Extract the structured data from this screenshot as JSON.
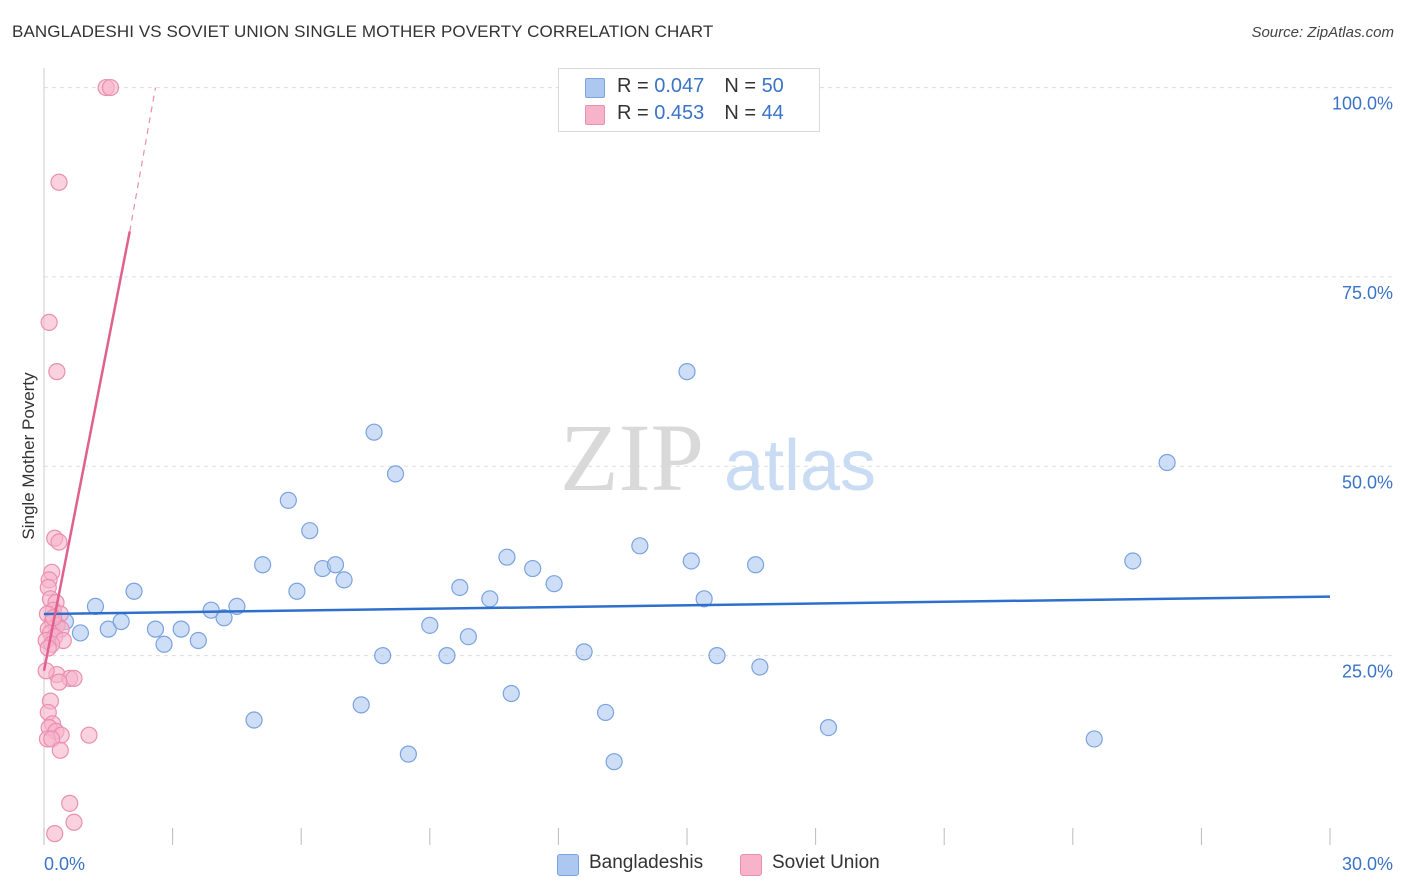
{
  "title": "BANGLADESHI VS SOVIET UNION SINGLE MOTHER POVERTY CORRELATION CHART",
  "source": "Source: ZipAtlas.com",
  "watermark": {
    "zip": "ZIP",
    "atlas": "atlas"
  },
  "legend_top": [
    {
      "r_label": "R = ",
      "r_value": "0.047",
      "n_label": "N = ",
      "n_value": "50"
    },
    {
      "r_label": "R = ",
      "r_value": "0.453",
      "n_label": "N = ",
      "n_value": "44"
    }
  ],
  "legend_bottom": [
    "Bangladeshis",
    "Soviet Union"
  ],
  "colors": {
    "blue_fill": "#adc8f0",
    "blue_stroke": "#7aa3e0",
    "blue_line": "#2f6fcc",
    "pink_fill": "#f6b3c9",
    "pink_stroke": "#ea8fb0",
    "pink_line": "#e0608e",
    "tick_label": "#3a73c8",
    "grid": "#dddddd"
  },
  "chart_data": {
    "type": "scatter",
    "title": "BANGLADESHI VS SOVIET UNION SINGLE MOTHER POVERTY CORRELATION CHART",
    "xlabel": "",
    "ylabel": "Single Mother Poverty",
    "xlim": [
      0,
      30
    ],
    "ylim": [
      0,
      101
    ],
    "x_tick_labels": [
      "0.0%",
      "30.0%"
    ],
    "y_ticks": [
      25,
      50,
      75,
      100
    ],
    "y_tick_labels": [
      "25.0%",
      "50.0%",
      "75.0%",
      "100.0%"
    ],
    "series": [
      {
        "name": "Bangladeshis",
        "r": 0.047,
        "n": 50,
        "trend": {
          "x": [
            0,
            30
          ],
          "y": [
            30.5,
            32.8
          ],
          "style": "solid"
        },
        "points": [
          {
            "x": 0.5,
            "y": 29.5
          },
          {
            "x": 0.85,
            "y": 28.0
          },
          {
            "x": 1.2,
            "y": 31.5
          },
          {
            "x": 1.5,
            "y": 28.5
          },
          {
            "x": 1.8,
            "y": 29.5
          },
          {
            "x": 2.1,
            "y": 33.5
          },
          {
            "x": 2.6,
            "y": 28.5
          },
          {
            "x": 2.8,
            "y": 26.5
          },
          {
            "x": 3.2,
            "y": 28.5
          },
          {
            "x": 3.6,
            "y": 27.0
          },
          {
            "x": 3.9,
            "y": 31.0
          },
          {
            "x": 4.2,
            "y": 30.0
          },
          {
            "x": 4.5,
            "y": 31.5
          },
          {
            "x": 4.9,
            "y": 16.5
          },
          {
            "x": 5.1,
            "y": 37.0
          },
          {
            "x": 5.7,
            "y": 45.5
          },
          {
            "x": 5.9,
            "y": 33.5
          },
          {
            "x": 6.2,
            "y": 41.5
          },
          {
            "x": 6.5,
            "y": 36.5
          },
          {
            "x": 6.8,
            "y": 37.0
          },
          {
            "x": 7.0,
            "y": 35.0
          },
          {
            "x": 7.4,
            "y": 18.5
          },
          {
            "x": 7.7,
            "y": 54.5
          },
          {
            "x": 7.9,
            "y": 25.0
          },
          {
            "x": 8.2,
            "y": 49.0
          },
          {
            "x": 8.5,
            "y": 12.0
          },
          {
            "x": 9.0,
            "y": 29.0
          },
          {
            "x": 9.4,
            "y": 25.0
          },
          {
            "x": 9.7,
            "y": 34.0
          },
          {
            "x": 9.9,
            "y": 27.5
          },
          {
            "x": 10.4,
            "y": 32.5
          },
          {
            "x": 10.8,
            "y": 38.0
          },
          {
            "x": 10.9,
            "y": 20.0
          },
          {
            "x": 11.4,
            "y": 36.5
          },
          {
            "x": 11.9,
            "y": 34.5
          },
          {
            "x": 12.6,
            "y": 25.5
          },
          {
            "x": 13.1,
            "y": 17.5
          },
          {
            "x": 13.3,
            "y": 11.0
          },
          {
            "x": 13.9,
            "y": 39.5
          },
          {
            "x": 15.0,
            "y": 62.5
          },
          {
            "x": 15.1,
            "y": 37.5
          },
          {
            "x": 15.4,
            "y": 32.5
          },
          {
            "x": 15.7,
            "y": 25.0
          },
          {
            "x": 16.6,
            "y": 37.0
          },
          {
            "x": 16.7,
            "y": 23.5
          },
          {
            "x": 18.3,
            "y": 15.5
          },
          {
            "x": 24.5,
            "y": 14.0
          },
          {
            "x": 25.4,
            "y": 37.5
          },
          {
            "x": 26.2,
            "y": 50.5
          },
          {
            "x": 0.3,
            "y": 29.0
          }
        ]
      },
      {
        "name": "Soviet Union",
        "r": 0.453,
        "n": 44,
        "trend": {
          "x": [
            0,
            2.0
          ],
          "y": [
            23.0,
            81.0
          ],
          "style": "solid",
          "extension": {
            "x": [
              2.0,
              2.6
            ],
            "y": [
              81.0,
              100.0
            ],
            "style": "dashed"
          }
        },
        "points": [
          {
            "x": 1.45,
            "y": 100.0
          },
          {
            "x": 1.55,
            "y": 100.0
          },
          {
            "x": 0.35,
            "y": 87.5
          },
          {
            "x": 0.12,
            "y": 69.0
          },
          {
            "x": 0.3,
            "y": 62.5
          },
          {
            "x": 0.25,
            "y": 40.5
          },
          {
            "x": 0.35,
            "y": 40.0
          },
          {
            "x": 0.18,
            "y": 36.0
          },
          {
            "x": 0.12,
            "y": 35.0
          },
          {
            "x": 0.1,
            "y": 34.0
          },
          {
            "x": 0.15,
            "y": 32.5
          },
          {
            "x": 0.28,
            "y": 32.0
          },
          {
            "x": 0.22,
            "y": 31.0
          },
          {
            "x": 0.38,
            "y": 30.5
          },
          {
            "x": 0.08,
            "y": 30.5
          },
          {
            "x": 0.2,
            "y": 29.5
          },
          {
            "x": 0.3,
            "y": 29.0
          },
          {
            "x": 0.1,
            "y": 28.5
          },
          {
            "x": 0.4,
            "y": 28.5
          },
          {
            "x": 0.15,
            "y": 28.0
          },
          {
            "x": 0.25,
            "y": 27.5
          },
          {
            "x": 0.45,
            "y": 27.0
          },
          {
            "x": 0.05,
            "y": 27.0
          },
          {
            "x": 0.18,
            "y": 26.5
          },
          {
            "x": 0.1,
            "y": 26.0
          },
          {
            "x": 0.3,
            "y": 22.5
          },
          {
            "x": 0.6,
            "y": 22.0
          },
          {
            "x": 0.7,
            "y": 22.0
          },
          {
            "x": 0.35,
            "y": 21.5
          },
          {
            "x": 0.15,
            "y": 19.0
          },
          {
            "x": 0.1,
            "y": 17.5
          },
          {
            "x": 0.2,
            "y": 16.0
          },
          {
            "x": 0.12,
            "y": 15.5
          },
          {
            "x": 0.28,
            "y": 15.0
          },
          {
            "x": 0.4,
            "y": 14.5
          },
          {
            "x": 1.05,
            "y": 14.5
          },
          {
            "x": 0.08,
            "y": 14.0
          },
          {
            "x": 0.18,
            "y": 14.0
          },
          {
            "x": 0.38,
            "y": 12.5
          },
          {
            "x": 0.6,
            "y": 5.5
          },
          {
            "x": 0.7,
            "y": 3.0
          },
          {
            "x": 0.25,
            "y": 1.5
          },
          {
            "x": 0.05,
            "y": 23.0
          },
          {
            "x": 0.22,
            "y": 30.0
          }
        ]
      }
    ]
  }
}
